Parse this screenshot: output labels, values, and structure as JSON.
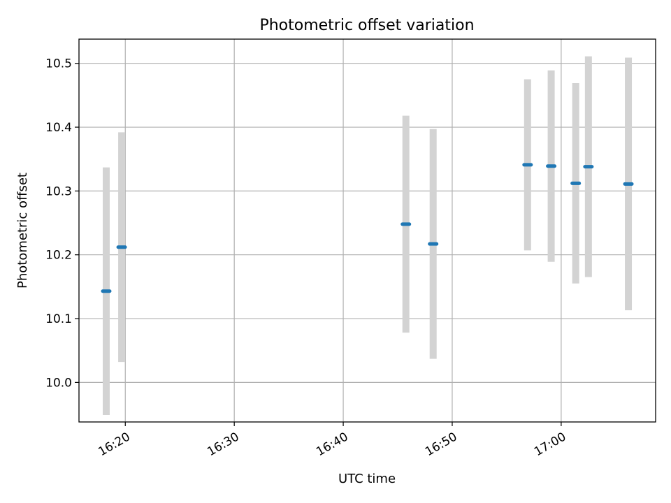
{
  "chart_data": {
    "type": "scatter",
    "title": "Photometric offset variation",
    "xlabel": "UTC time",
    "ylabel": "Photometric offset",
    "x_ticks": [
      "16:20",
      "16:30",
      "16:40",
      "16:50",
      "17:00"
    ],
    "x_tick_minutes": [
      980,
      990,
      1000,
      1010,
      1020
    ],
    "y_ticks": [
      "10.0",
      "10.1",
      "10.2",
      "10.3",
      "10.4",
      "10.5"
    ],
    "y_tick_values": [
      10.0,
      10.1,
      10.2,
      10.3,
      10.4,
      10.5
    ],
    "xlim": [
      "16:15:45",
      "17:08:40"
    ],
    "ylim": [
      9.938,
      10.538
    ],
    "grid": true,
    "series": [
      {
        "marker_color": "#1f77b4",
        "errorbar_color": "#d3d3d3",
        "points": [
          {
            "x": "16:18:15",
            "y": 10.143,
            "err": 0.194
          },
          {
            "x": "16:19:40",
            "y": 10.212,
            "err": 0.18
          },
          {
            "x": "16:45:45",
            "y": 10.248,
            "err": 0.17
          },
          {
            "x": "16:48:15",
            "y": 10.217,
            "err": 0.18
          },
          {
            "x": "16:56:55",
            "y": 10.341,
            "err": 0.134
          },
          {
            "x": "16:59:05",
            "y": 10.339,
            "err": 0.15
          },
          {
            "x": "17:01:20",
            "y": 10.312,
            "err": 0.157
          },
          {
            "x": "17:02:30",
            "y": 10.338,
            "err": 0.173
          },
          {
            "x": "17:06:10",
            "y": 10.311,
            "err": 0.198
          }
        ]
      }
    ]
  }
}
